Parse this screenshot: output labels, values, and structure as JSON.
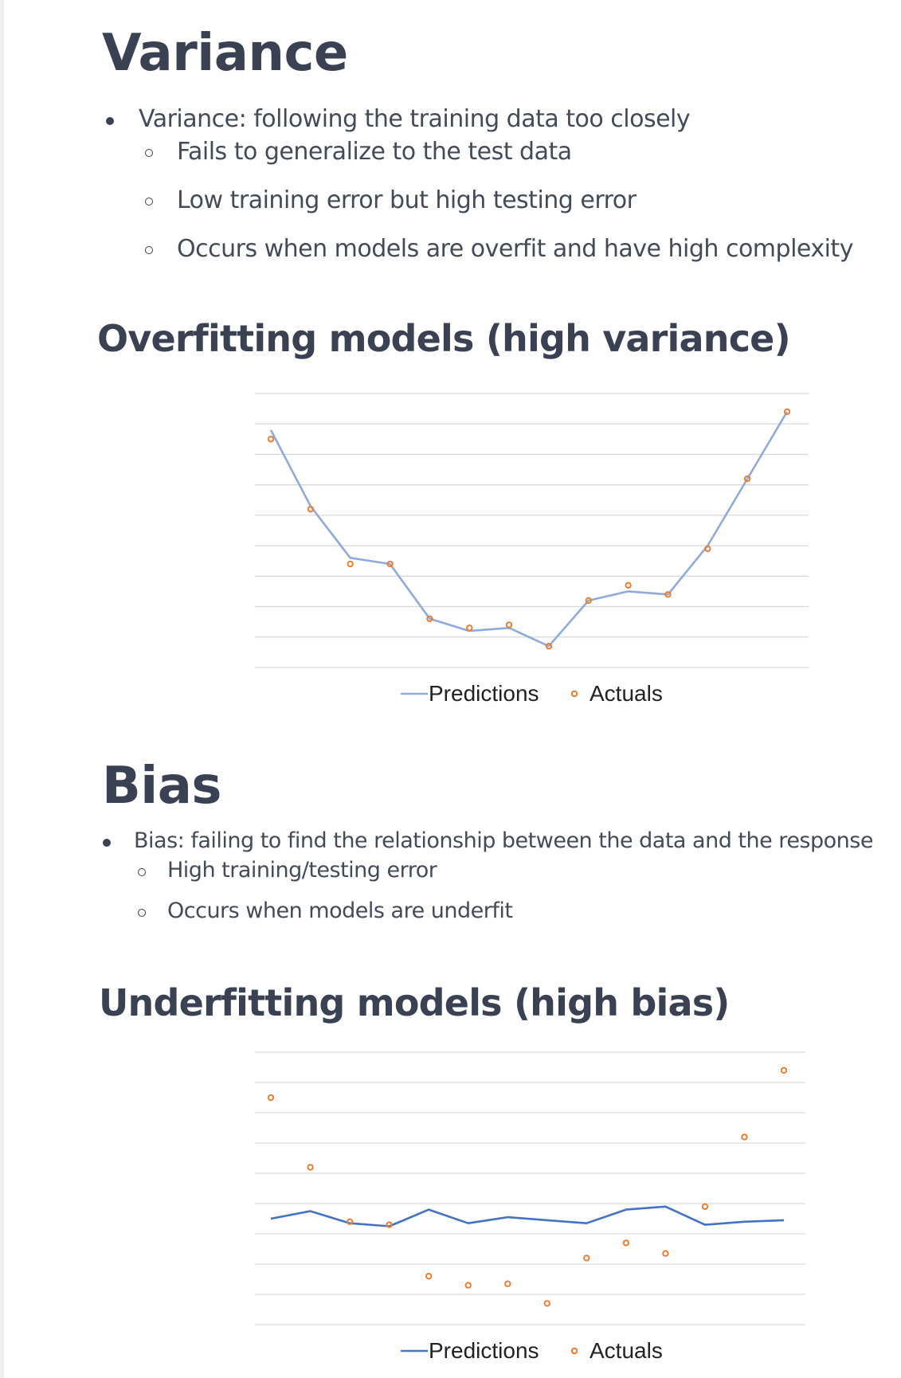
{
  "variance": {
    "title": "Variance",
    "bullet": "Variance: following the training data too closely",
    "sub_bullets": [
      "Fails to generalize to the test data",
      "Low training error but high testing error",
      "Occurs when models are overfit and have high complexity"
    ]
  },
  "overfit_heading": "Overfitting models (high variance)",
  "bias": {
    "title": "Bias",
    "bullet": "Bias: failing to find the relationship between the data and the response",
    "sub_bullets": [
      "High training/testing error",
      "Occurs when models are underfit"
    ]
  },
  "underfit_heading": "Underfitting models (high bias)",
  "colors": {
    "text": "#3a4152",
    "predictions_overfit": "#8faadc",
    "predictions_underfit": "#4472c4",
    "actuals": "#ed7d31",
    "gridline": "#d9d9d9"
  },
  "chart_data": [
    {
      "type": "line",
      "x": [
        1,
        2,
        3,
        4,
        5,
        6,
        7,
        8,
        9,
        10,
        11,
        12,
        13,
        14
      ],
      "series": [
        {
          "name": "Predictions",
          "style": "line",
          "values": [
            7.8,
            5.3,
            3.6,
            3.4,
            1.6,
            1.2,
            1.3,
            0.7,
            2.2,
            2.5,
            2.4,
            4.0,
            6.2,
            8.4
          ]
        },
        {
          "name": "Actuals",
          "style": "markers",
          "values": [
            7.5,
            5.2,
            3.4,
            3.4,
            1.6,
            1.3,
            1.4,
            0.7,
            2.2,
            2.7,
            2.4,
            3.9,
            6.2,
            8.4
          ]
        }
      ],
      "ylim": [
        0,
        9
      ],
      "grid": true,
      "legend_position": "bottom"
    },
    {
      "type": "line",
      "x": [
        1,
        2,
        3,
        4,
        5,
        6,
        7,
        8,
        9,
        10,
        11,
        12,
        13,
        14
      ],
      "series": [
        {
          "name": "Predictions",
          "style": "line",
          "values": [
            3.5,
            3.75,
            3.35,
            3.25,
            3.8,
            3.35,
            3.55,
            3.45,
            3.35,
            3.8,
            3.9,
            3.3,
            3.4,
            3.45
          ]
        },
        {
          "name": "Actuals",
          "style": "markers",
          "values": [
            7.5,
            5.2,
            3.4,
            3.3,
            1.6,
            1.3,
            1.35,
            0.7,
            2.2,
            2.7,
            2.35,
            3.9,
            6.2,
            8.4
          ]
        }
      ],
      "ylim": [
        0,
        9
      ],
      "grid": true,
      "legend_position": "bottom"
    }
  ]
}
